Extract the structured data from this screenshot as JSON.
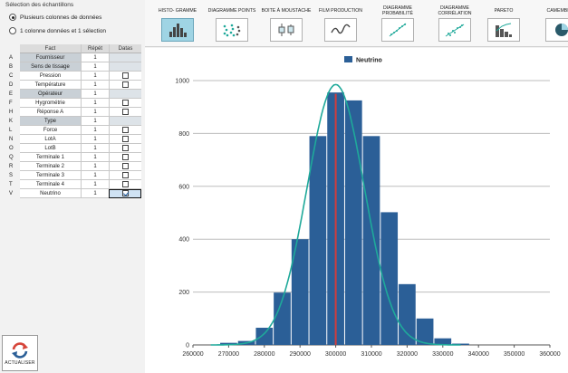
{
  "selection": {
    "title": "Sélection des échantillons",
    "options": [
      {
        "label": "Plusieurs colonnes de données",
        "selected": true
      },
      {
        "label": "1 colonne données et 1 sélection",
        "selected": false
      }
    ]
  },
  "grid": {
    "headers": {
      "fact": "Fact",
      "repeat": "Répét",
      "datas": "Datas"
    },
    "rows": [
      {
        "letter": "A",
        "name": "Fournisseur",
        "repeat": "1",
        "kind": "gray",
        "checkbox": false,
        "checked": false
      },
      {
        "letter": "B",
        "name": "Sens de tissage",
        "repeat": "1",
        "kind": "gray",
        "checkbox": false,
        "checked": false
      },
      {
        "letter": "C",
        "name": "Pression",
        "repeat": "1",
        "kind": "white",
        "checkbox": true,
        "checked": false
      },
      {
        "letter": "D",
        "name": "Température",
        "repeat": "1",
        "kind": "white",
        "checkbox": true,
        "checked": false
      },
      {
        "letter": "E",
        "name": "Opérateur",
        "repeat": "1",
        "kind": "gray",
        "checkbox": false,
        "checked": false
      },
      {
        "letter": "F",
        "name": "Hygrométrie",
        "repeat": "1",
        "kind": "white",
        "checkbox": true,
        "checked": false
      },
      {
        "letter": "H",
        "name": "Réponse A",
        "repeat": "1",
        "kind": "white",
        "checkbox": true,
        "checked": false
      },
      {
        "letter": "K",
        "name": "Type",
        "repeat": "1",
        "kind": "gray",
        "checkbox": false,
        "checked": false
      },
      {
        "letter": "L",
        "name": "Force",
        "repeat": "1",
        "kind": "white",
        "checkbox": true,
        "checked": false
      },
      {
        "letter": "N",
        "name": "LotA",
        "repeat": "1",
        "kind": "white",
        "checkbox": true,
        "checked": false
      },
      {
        "letter": "O",
        "name": "LotB",
        "repeat": "1",
        "kind": "white",
        "checkbox": true,
        "checked": false
      },
      {
        "letter": "Q",
        "name": "Terminale 1",
        "repeat": "1",
        "kind": "white",
        "checkbox": true,
        "checked": false
      },
      {
        "letter": "R",
        "name": "Terminale 2",
        "repeat": "1",
        "kind": "white",
        "checkbox": true,
        "checked": false
      },
      {
        "letter": "S",
        "name": "Terminale 3",
        "repeat": "1",
        "kind": "white",
        "checkbox": true,
        "checked": false
      },
      {
        "letter": "T",
        "name": "Terminale 4",
        "repeat": "1",
        "kind": "white",
        "checkbox": true,
        "checked": false
      },
      {
        "letter": "V",
        "name": "Neutrino",
        "repeat": "1",
        "kind": "white",
        "checkbox": true,
        "checked": true
      }
    ]
  },
  "refresh": {
    "label": "ACTUALISER",
    "icon": "refresh-arrows-icon"
  },
  "toolbar": [
    {
      "id": "histogram",
      "label": "HISTO- GRAMME",
      "icon": "histogram-icon",
      "active": true
    },
    {
      "id": "dotplot",
      "label": "DIAGRAMME POINTS",
      "icon": "dot-plot-icon",
      "active": false
    },
    {
      "id": "boxplot",
      "label": "BOITE À MOUSTACHE",
      "icon": "box-plot-icon",
      "active": false
    },
    {
      "id": "film",
      "label": "FILM PRODUCTION",
      "icon": "line-chart-icon",
      "active": false
    },
    {
      "id": "probability",
      "label": "DIAGRAMME PROBABILITÉ",
      "icon": "probability-plot-icon",
      "active": false
    },
    {
      "id": "correlation",
      "label": "DIAGRAMME CORRÉLATION",
      "icon": "scatter-correlation-icon",
      "active": false
    },
    {
      "id": "pareto",
      "label": "PARETO",
      "icon": "pareto-icon",
      "active": false
    },
    {
      "id": "pie",
      "label": "CAMEMBERT",
      "icon": "pie-chart-icon",
      "active": false
    }
  ],
  "colors": {
    "bar": "#2b5f97",
    "curve": "#1fa99a",
    "mean_line": "#d23c3c",
    "accent": "#9fd4e4"
  },
  "chart_data": {
    "type": "bar",
    "title": "",
    "xlabel": "",
    "ylabel": "",
    "legend": {
      "entries": [
        "Neutrino"
      ],
      "placement": "top-center"
    },
    "grid": true,
    "xlim": [
      260000,
      360000
    ],
    "ylim": [
      0,
      1000
    ],
    "xticks": [
      260000,
      270000,
      280000,
      290000,
      300000,
      310000,
      320000,
      330000,
      340000,
      350000,
      360000
    ],
    "yticks": [
      0,
      200,
      400,
      600,
      800,
      1000
    ],
    "bin_width": 5000,
    "series": [
      {
        "name": "Neutrino",
        "bin_starts": [
          267500,
          272500,
          277500,
          282500,
          287500,
          292500,
          297500,
          302500,
          307500,
          312500,
          317500,
          322500,
          327500,
          332500
        ],
        "values": [
          8,
          15,
          65,
          198,
          400,
          790,
          955,
          925,
          790,
          502,
          230,
          100,
          25,
          5
        ]
      }
    ],
    "mean_line_x": 300000,
    "normal_curve": {
      "mean": 300000,
      "std": 8000,
      "peak": 985
    }
  }
}
